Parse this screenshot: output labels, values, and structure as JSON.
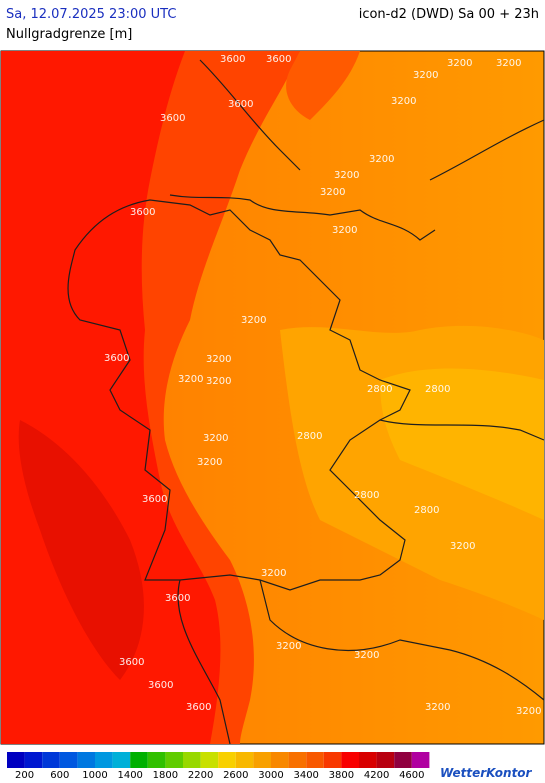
{
  "header": {
    "datetime": "Sa, 12.07.2025 23:00 UTC",
    "model": "icon-d2 (DWD) Sa 00 + 23h",
    "parameter": "Nullgradgrenze [m]"
  },
  "map": {
    "contour_labels": [
      "3600",
      "3600",
      "3200",
      "3200",
      "3200",
      "3600",
      "3600",
      "3200",
      "3200",
      "3200",
      "3200",
      "3600",
      "3200",
      "3200",
      "3600",
      "3200",
      "3200",
      "3200",
      "2800",
      "2800",
      "3200",
      "2800",
      "3200",
      "3600",
      "2800",
      "2800",
      "3200",
      "3200",
      "3600",
      "3200",
      "3200",
      "3600",
      "3600",
      "3600",
      "3200",
      "3200"
    ]
  },
  "colorbar": {
    "labels": [
      200,
      600,
      1000,
      1400,
      1800,
      2200,
      2600,
      3000,
      3400,
      3800,
      4200,
      4600
    ],
    "colors": [
      "#0000c0",
      "#0018d0",
      "#0038d8",
      "#0058e0",
      "#0078e0",
      "#0098e0",
      "#00b0d8",
      "#00b000",
      "#30c000",
      "#60cc00",
      "#98d800",
      "#c8e000",
      "#f8d000",
      "#f8b800",
      "#f8a000",
      "#f88800",
      "#f87000",
      "#f85800",
      "#f83800",
      "#f80000",
      "#d80000",
      "#b80010",
      "#900040",
      "#b000a0"
    ]
  },
  "brand": "WetterKontor"
}
